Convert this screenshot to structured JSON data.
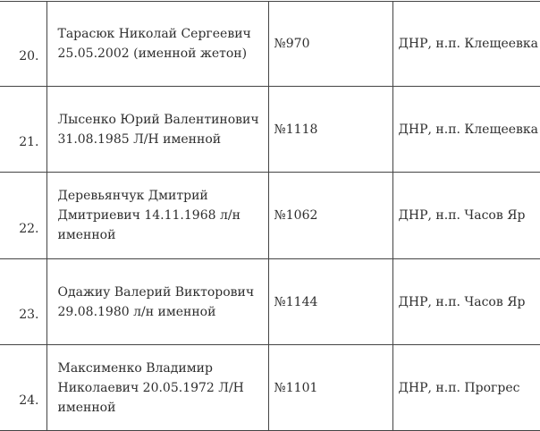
{
  "rows": [
    {
      "num": "20.",
      "name": "Тарасюк Николай Сергеевич 25.05.2002 (именной жетон)",
      "code": "№970",
      "location": "ДНР, н.п. Клещеевка"
    },
    {
      "num": "21.",
      "name": "Лысенко Юрий Валентинович 31.08.1985 Л/Н именной",
      "code": "№1118",
      "location": "ДНР, н.п. Клещеевка"
    },
    {
      "num": "22.",
      "name": "Деревьянчук Дмитрий Дмитриевич 14.11.1968 л/н именной",
      "code": "№1062",
      "location": "ДНР, н.п. Часов Яр"
    },
    {
      "num": "23.",
      "name": "Одажиу Валерий Викторович 29.08.1980 л/н именной",
      "code": "№1144",
      "location": "ДНР, н.п. Часов Яр"
    },
    {
      "num": "24.",
      "name": "Максименко Владимир Николаевич 20.05.1972 Л/Н именной",
      "code": "№1101",
      "location": "ДНР, н.п. Прогрес"
    }
  ]
}
